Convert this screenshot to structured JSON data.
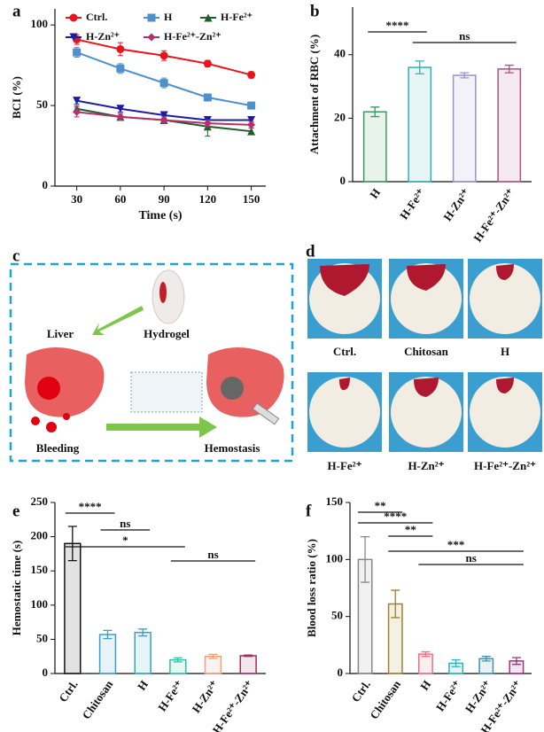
{
  "panel_labels": [
    "a",
    "b",
    "c",
    "d",
    "e",
    "f"
  ],
  "chart_data": [
    {
      "type": "line",
      "x_label": "Time (s)",
      "y_label": "BCI (%)",
      "x": [
        30,
        60,
        90,
        120,
        150
      ],
      "xlim": [
        15,
        160
      ],
      "xticks": [
        30,
        60,
        90,
        120,
        150
      ],
      "ylim": [
        0,
        110
      ],
      "yticks": [
        0,
        50,
        100
      ],
      "series": [
        {
          "name": "Ctrl.",
          "color": "#e8141c",
          "marker": "circle",
          "values": [
            91,
            85,
            81,
            76,
            69
          ],
          "errors": [
            3,
            4,
            3,
            2,
            2
          ]
        },
        {
          "name": "H",
          "color": "#4f8fcb",
          "marker": "square",
          "values": [
            83,
            73,
            64,
            55,
            50
          ],
          "errors": [
            3,
            3,
            3,
            2,
            2
          ]
        },
        {
          "name": "H-Fe²⁺",
          "color": "#1d5e2c",
          "marker": "triangle-up",
          "values": [
            48,
            43,
            41,
            37,
            34
          ],
          "errors": [
            2,
            2,
            2,
            6,
            2
          ]
        },
        {
          "name": "H-Zn²⁺",
          "color": "#1c1ca6",
          "marker": "triangle-down",
          "values": [
            53,
            48,
            44,
            41,
            41
          ],
          "errors": [
            2,
            2,
            2,
            2,
            2
          ]
        },
        {
          "name": "H-Fe²⁺-Zn²⁺",
          "color": "#b5306c",
          "marker": "diamond",
          "values": [
            46,
            43,
            41,
            39,
            38
          ],
          "errors": [
            3,
            2,
            2,
            2,
            2
          ]
        }
      ]
    },
    {
      "type": "bar",
      "y_label": "Attachment of RBC (%)",
      "categories": [
        "H",
        "H-Fe²⁺",
        "H-Zn²⁺",
        "H-Fe²⁺-Zn²⁺"
      ],
      "values": [
        22,
        36,
        33.5,
        35.5
      ],
      "errors": [
        1.5,
        2,
        0.8,
        1.2
      ],
      "colors": [
        "#3a9a5a",
        "#2fb0b0",
        "#9a90d0",
        "#b05080"
      ],
      "ylim": [
        0,
        55
      ],
      "yticks": [
        0,
        20,
        40
      ],
      "annotations": [
        "****",
        "ns"
      ]
    },
    {
      "type": "bar",
      "y_label": "Hemostatic time (s)",
      "categories": [
        "Ctrl.",
        "Chitosan",
        "H",
        "H-Fe²⁺",
        "H-Zn²⁺",
        "H-Fe²⁺-Zn²⁺"
      ],
      "values": [
        190,
        57,
        60,
        20,
        25,
        26
      ],
      "errors": [
        25,
        6,
        5,
        3,
        3,
        1
      ],
      "colors": [
        "#111111",
        "#3aa0c8",
        "#30a8b8",
        "#30c0a8",
        "#e8a080",
        "#a03060"
      ],
      "ylim": [
        0,
        250
      ],
      "yticks": [
        0,
        50,
        100,
        150,
        200,
        250
      ],
      "annotations": [
        "****",
        "ns",
        "*",
        "ns"
      ]
    },
    {
      "type": "bar",
      "y_label": "Blood loss ratio (%)",
      "categories": [
        "Ctrl.",
        "Chitosan",
        "H",
        "H-Fe²⁺",
        "H-Zn²⁺",
        "H-Fe²⁺-Zn²⁺"
      ],
      "values": [
        100,
        61,
        17,
        9,
        13,
        11
      ],
      "errors": [
        20,
        12,
        2,
        3,
        2,
        3
      ],
      "colors": [
        "#888888",
        "#a08030",
        "#f07080",
        "#30b0c0",
        "#4090b0",
        "#a03080"
      ],
      "ylim": [
        0,
        150
      ],
      "yticks": [
        0,
        50,
        100,
        150
      ],
      "annotations": [
        "**",
        "****",
        "**",
        "***",
        "ns"
      ]
    }
  ],
  "diagram": {
    "labels": [
      "Liver",
      "Hydrogel",
      "Bleeding",
      "Hemostasis"
    ]
  },
  "photos": {
    "labels": [
      "Ctrl.",
      "Chitosan",
      "H",
      "H-Fe²⁺",
      "H-Zn²⁺",
      "H-Fe²⁺-Zn²⁺"
    ]
  }
}
